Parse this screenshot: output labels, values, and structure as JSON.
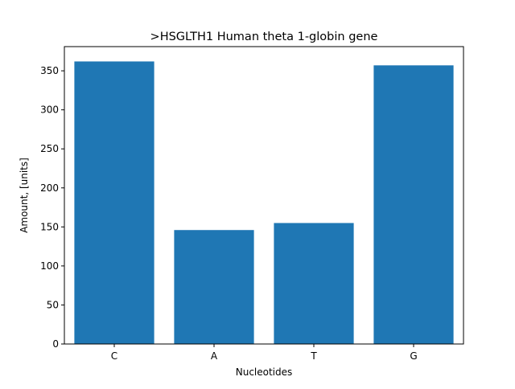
{
  "chart_data": {
    "type": "bar",
    "title": ">HSGLTH1 Human theta 1-globin gene",
    "xlabel": "Nucleotides",
    "ylabel": "Amount, [units]",
    "categories": [
      "C",
      "A",
      "T",
      "G"
    ],
    "values": [
      362,
      146,
      155,
      357
    ],
    "ylim": [
      0,
      381
    ],
    "yticks": [
      0,
      50,
      100,
      150,
      200,
      250,
      300,
      350
    ],
    "bar_color": "#1f77b4",
    "grid": false,
    "legend": "none"
  }
}
